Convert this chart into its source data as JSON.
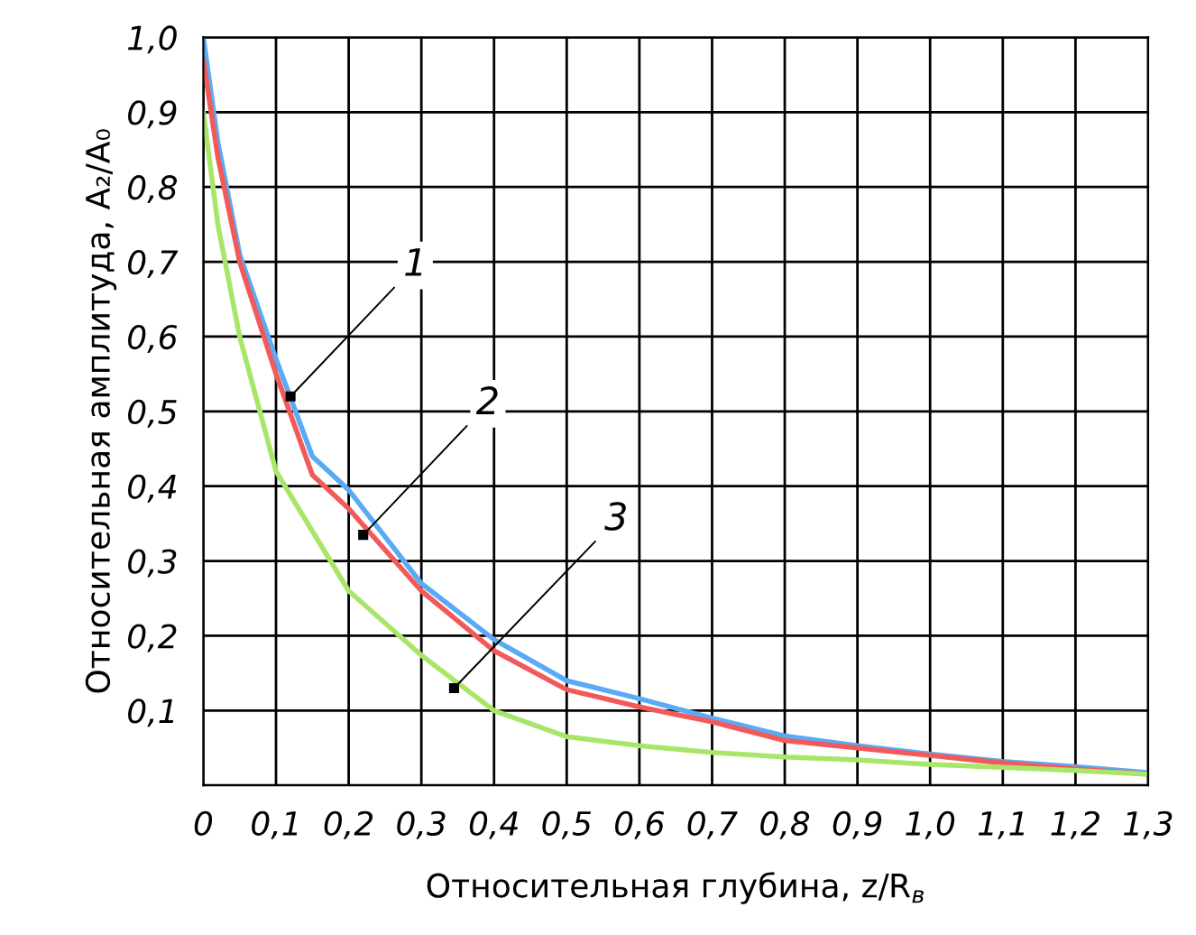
{
  "chart_data": {
    "type": "line",
    "xlabel": "Относительная глубина, z/R$_{в}$",
    "ylabel": "Относительная амплитуда, A₂/A₀",
    "xlim": [
      0,
      1.3
    ],
    "ylim": [
      0,
      1.0
    ],
    "xticks": [
      {
        "value": 0,
        "label": "0"
      },
      {
        "value": 0.1,
        "label": "0,1"
      },
      {
        "value": 0.2,
        "label": "0,2"
      },
      {
        "value": 0.3,
        "label": "0,3"
      },
      {
        "value": 0.4,
        "label": "0,4"
      },
      {
        "value": 0.5,
        "label": "0,5"
      },
      {
        "value": 0.6,
        "label": "0,6"
      },
      {
        "value": 0.7,
        "label": "0,7"
      },
      {
        "value": 0.8,
        "label": "0,8"
      },
      {
        "value": 0.9,
        "label": "0,9"
      },
      {
        "value": 1.0,
        "label": "1,0"
      },
      {
        "value": 1.1,
        "label": "1,1"
      },
      {
        "value": 1.2,
        "label": "1,2"
      },
      {
        "value": 1.3,
        "label": "1,3"
      }
    ],
    "yticks": [
      {
        "value": 0,
        "label": null
      },
      {
        "value": 0.1,
        "label": "0,1"
      },
      {
        "value": 0.2,
        "label": "0,2"
      },
      {
        "value": 0.3,
        "label": "0,3"
      },
      {
        "value": 0.4,
        "label": "0,4"
      },
      {
        "value": 0.5,
        "label": "0,5"
      },
      {
        "value": 0.6,
        "label": "0,6"
      },
      {
        "value": 0.7,
        "label": "0,7"
      },
      {
        "value": 0.8,
        "label": "0,8"
      },
      {
        "value": 0.9,
        "label": "0,9"
      },
      {
        "value": 1.0,
        "label": "1,0"
      }
    ],
    "grid": true,
    "marker": "none",
    "line_style": "solid",
    "x": [
      0,
      0.02,
      0.05,
      0.1,
      0.15,
      0.2,
      0.3,
      0.4,
      0.5,
      0.6,
      0.7,
      0.8,
      0.9,
      1.0,
      1.1,
      1.2,
      1.3
    ],
    "series": [
      {
        "color": "#5aaaf5",
        "values": [
          1.0,
          0.86,
          0.71,
          0.57,
          0.44,
          0.395,
          0.27,
          0.195,
          0.14,
          0.116,
          0.09,
          0.066,
          0.053,
          0.042,
          0.032,
          0.025,
          0.017
        ]
      },
      {
        "color": "#f25a5a",
        "values": [
          0.97,
          0.84,
          0.7,
          0.55,
          0.415,
          0.37,
          0.26,
          0.18,
          0.128,
          0.105,
          0.085,
          0.06,
          0.05,
          0.04,
          0.03,
          0.022,
          0.015
        ]
      },
      {
        "color": "#a8e66a",
        "values": [
          0.9,
          0.75,
          0.6,
          0.42,
          0.34,
          0.26,
          0.174,
          0.1,
          0.065,
          0.053,
          0.044,
          0.038,
          0.034,
          0.028,
          0.024,
          0.02,
          0.015
        ]
      }
    ],
    "annotations": [
      {
        "text": "1",
        "x": 0.12,
        "y": 0.52
      },
      {
        "text": "2",
        "x": 0.22,
        "y": 0.335
      },
      {
        "text": "3",
        "x": 0.345,
        "y": 0.13
      }
    ]
  }
}
